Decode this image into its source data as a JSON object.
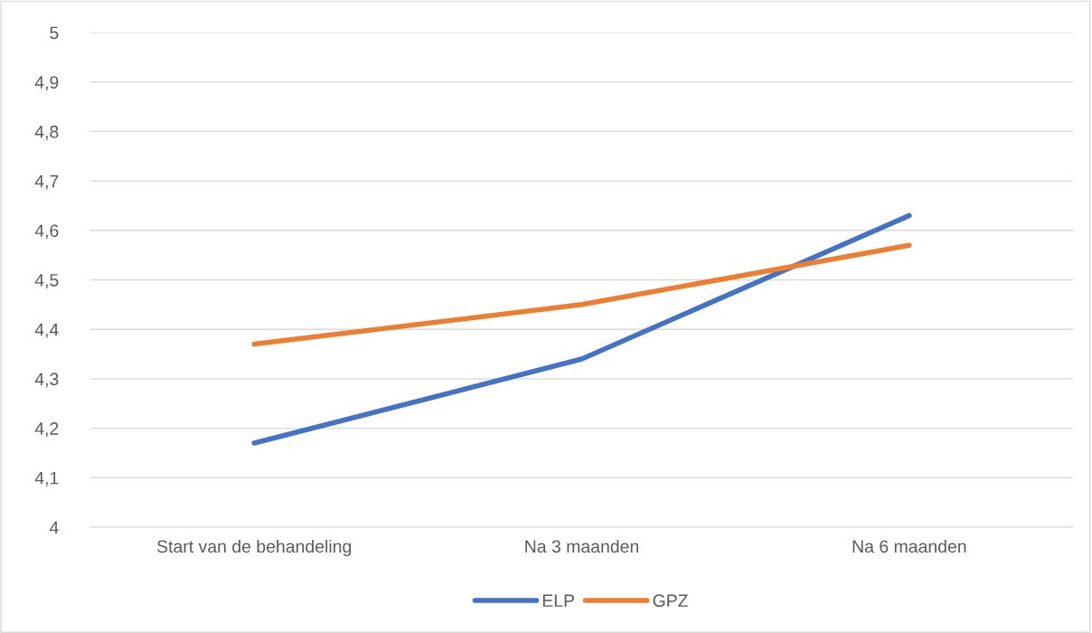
{
  "chart_data": {
    "type": "line",
    "categories": [
      "Start van de behandeling",
      "Na 3 maanden",
      "Na 6 maanden"
    ],
    "series": [
      {
        "name": "ELP",
        "color": "#4472c4",
        "values": [
          4.17,
          4.34,
          4.63
        ]
      },
      {
        "name": "GPZ",
        "color": "#ed7d31",
        "values": [
          4.37,
          4.45,
          4.57
        ]
      }
    ],
    "ylim": [
      4,
      5
    ],
    "yticks": [
      {
        "value": 4,
        "label": "4"
      },
      {
        "value": 4.1,
        "label": "4,1"
      },
      {
        "value": 4.2,
        "label": "4,2"
      },
      {
        "value": 4.3,
        "label": "4,3"
      },
      {
        "value": 4.4,
        "label": "4,4"
      },
      {
        "value": 4.5,
        "label": "4,5"
      },
      {
        "value": 4.6,
        "label": "4,6"
      },
      {
        "value": 4.7,
        "label": "4,7"
      },
      {
        "value": 4.8,
        "label": "4,8"
      },
      {
        "value": 4.9,
        "label": "4,9"
      },
      {
        "value": 5,
        "label": "5"
      }
    ],
    "grid": "y",
    "legend": "bottom",
    "marker": "none",
    "line_style": "solid"
  }
}
